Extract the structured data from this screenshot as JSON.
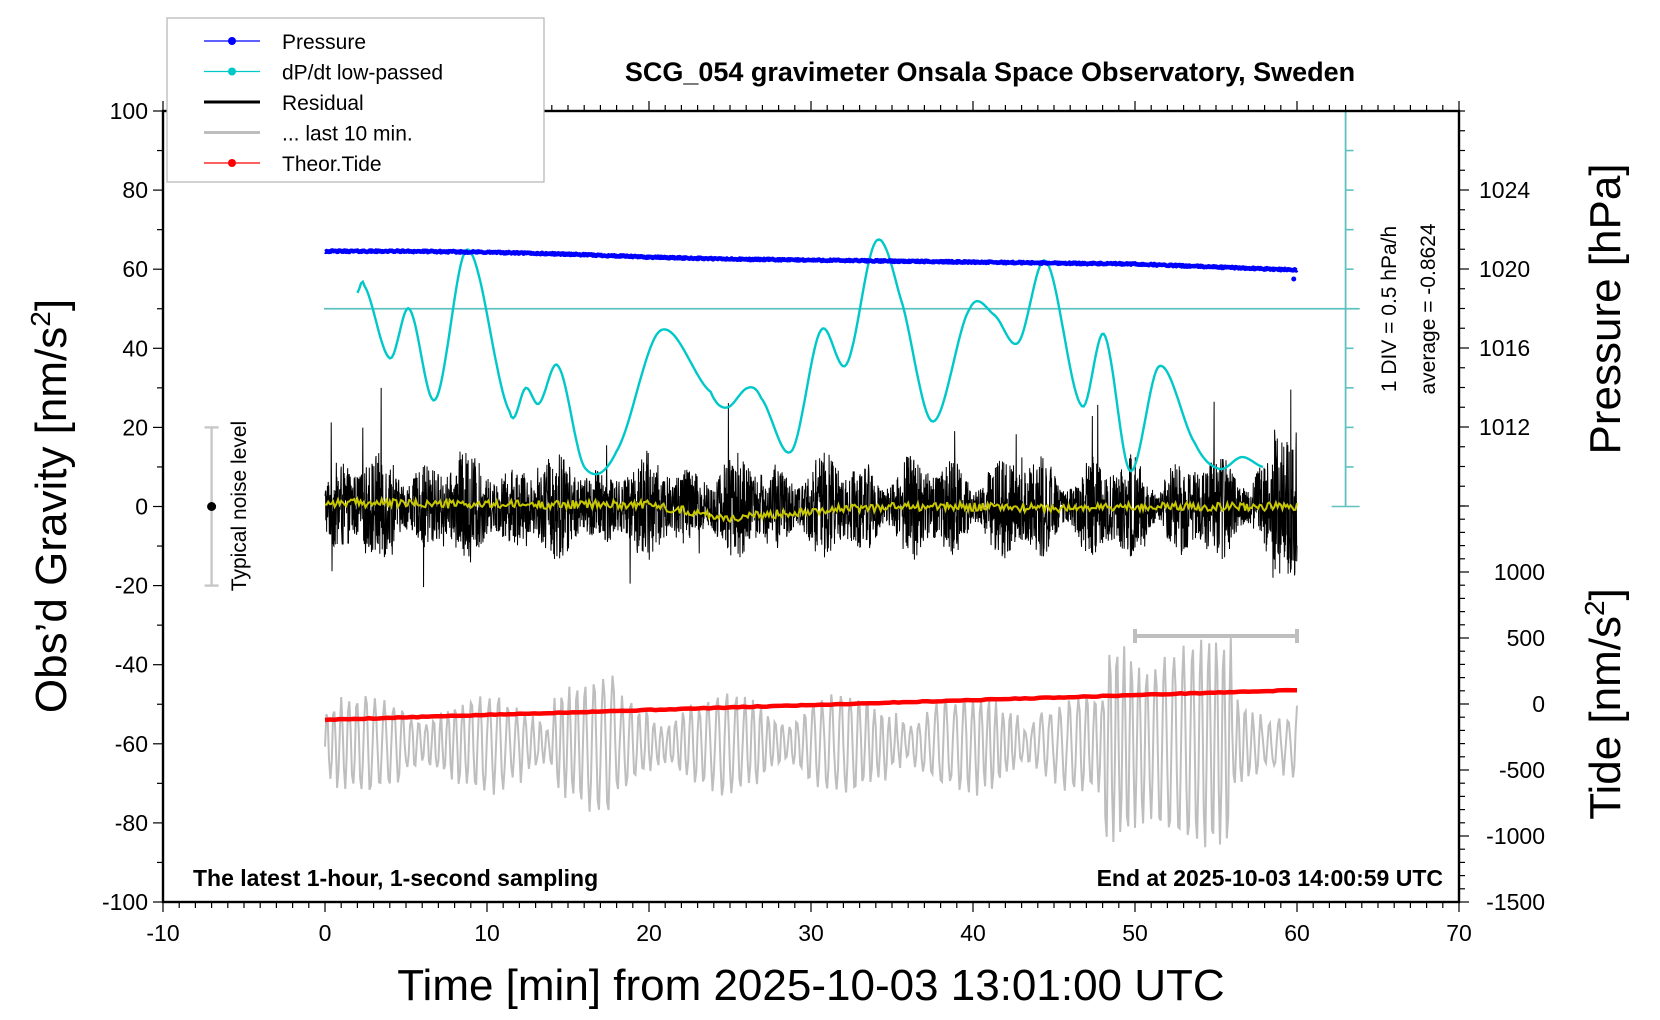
{
  "chart_data": {
    "type": "line",
    "title": "SCG_054 gravimeter Onsala Space Observatory, Sweden",
    "xlabel": "Time [min] from 2025-10-03 13:01:00 UTC",
    "ylabel_left": "Obs’d Gravity [nm/s",
    "ylabel_left_sup": "2",
    "ylabel_left_close": "]",
    "ylabel_right_top": "Pressure [hPa]",
    "ylabel_right_bottom": "Tide [nm/s",
    "ylabel_right_bottom_sup": "2",
    "ylabel_right_bottom_close": "]",
    "xlim": [
      -10,
      70
    ],
    "ylim_left": [
      -100,
      100
    ],
    "x_ticks": [
      "-10",
      "0",
      "10",
      "20",
      "30",
      "40",
      "50",
      "60",
      "70"
    ],
    "x_tick_values": [
      -10,
      0,
      10,
      20,
      30,
      40,
      50,
      60,
      70
    ],
    "y_left_ticks": [
      "100",
      "80",
      "60",
      "40",
      "20",
      "0",
      "-20",
      "-40",
      "-60",
      "-80",
      "-100"
    ],
    "y_left_tick_values": [
      100,
      80,
      60,
      40,
      20,
      0,
      -20,
      -40,
      -60,
      -80,
      -100
    ],
    "pressure_axis": {
      "ticks": [
        "1024",
        "1020",
        "1016",
        "1012"
      ],
      "tick_values": [
        1024,
        1020,
        1016,
        1012
      ],
      "range": [
        1008,
        1028
      ]
    },
    "tide_axis": {
      "ticks": [
        "1000",
        "500",
        "0",
        "-500",
        "-1000",
        "-1500"
      ],
      "tick_values": [
        1000,
        500,
        0,
        -500,
        -1000,
        -1500
      ],
      "range": [
        -1500,
        1500
      ]
    },
    "legend": {
      "placement": "top-left",
      "entries": [
        {
          "label": "Pressure",
          "color": "#0000ff",
          "marker": true
        },
        {
          "label": "dP/dt low-passed",
          "color": "#00c8c8",
          "marker": true
        },
        {
          "label": "Residual",
          "color": "#000000",
          "marker": false
        },
        {
          "label": "... last 10 min.",
          "color": "#bebebe",
          "marker": false
        },
        {
          "label": "Theor.Tide",
          "color": "#ff0000",
          "marker": true
        }
      ]
    },
    "series": [
      {
        "name": "Pressure",
        "unit": "hPa",
        "color": "#0000ff",
        "x": [
          0,
          5,
          10,
          15,
          20,
          25,
          30,
          35,
          40,
          45,
          50,
          55,
          60
        ],
        "values": [
          1020.9,
          1020.9,
          1020.85,
          1020.75,
          1020.6,
          1020.5,
          1020.45,
          1020.4,
          1020.35,
          1020.3,
          1020.25,
          1020.1,
          1019.95
        ]
      },
      {
        "name": "dP/dt low-passed",
        "unit": "gravity-axis units (1 DIV = 10 units = 0.5 hPa/h, reference line at 50 = average)",
        "color": "#00c8c8",
        "x": [
          2.0,
          2.4,
          4.0,
          5.2,
          6.8,
          8.8,
          11.4,
          12.4,
          13.2,
          14.4,
          16.0,
          18.0,
          20.7,
          23.8,
          24.8,
          26.1,
          26.9,
          28.8,
          30.6,
          32.2,
          34.0,
          35.5,
          37.5,
          39.8,
          41.3,
          42.8,
          44.5,
          46.7,
          48.1,
          49.7,
          51.5,
          53.7,
          55.2,
          56.6,
          57.9
        ],
        "values": [
          54,
          56,
          37.5,
          50,
          27,
          65,
          24,
          30,
          26,
          35.5,
          10,
          14,
          44.5,
          29,
          25,
          30,
          27.5,
          14,
          44.5,
          36,
          67,
          53,
          21.5,
          50,
          48.5,
          41.5,
          62,
          25.5,
          43.5,
          9,
          35.5,
          16,
          9.5,
          12.5,
          10
        ]
      },
      {
        "name": "Residual",
        "color": "#000000",
        "x_range": [
          0,
          60
        ],
        "typical_amplitude": 10,
        "max_amplitude": 30
      },
      {
        "name": "Residual smoothed",
        "color": "#c8c800",
        "x": [
          0,
          10,
          20,
          25,
          30,
          35,
          40,
          45,
          50,
          55,
          60
        ],
        "values": [
          1,
          0.5,
          0.5,
          -3,
          -1,
          0,
          0,
          -0.5,
          0,
          0,
          0
        ]
      },
      {
        "name": "... last 10 min.",
        "color": "#bebebe",
        "x_range": [
          0,
          60
        ],
        "offset": -60,
        "typical_amplitude": 12,
        "max_amplitude": 35
      },
      {
        "name": "Theor.Tide",
        "unit": "nm/s2",
        "color": "#ff0000",
        "x": [
          0,
          60
        ],
        "values": [
          -120,
          105
        ]
      }
    ],
    "reference_line": {
      "value": 50,
      "color": "#5fc0c0"
    },
    "dpdt_scale": {
      "label1": "1 DIV = 0.5 hPa/h",
      "label2": "average = -0.8624",
      "x": 63,
      "range": [
        0,
        100
      ]
    },
    "noise_bar": {
      "label": "Typical noise level",
      "x": -7,
      "range": [
        -20,
        20
      ]
    },
    "last10_bracket": {
      "x": [
        50,
        60
      ],
      "tide_value": 500
    },
    "annotations": {
      "bottom_left": "The latest 1-hour, 1-second sampling",
      "bottom_right": "End at 2025-10-03 14:00:59 UTC"
    }
  }
}
